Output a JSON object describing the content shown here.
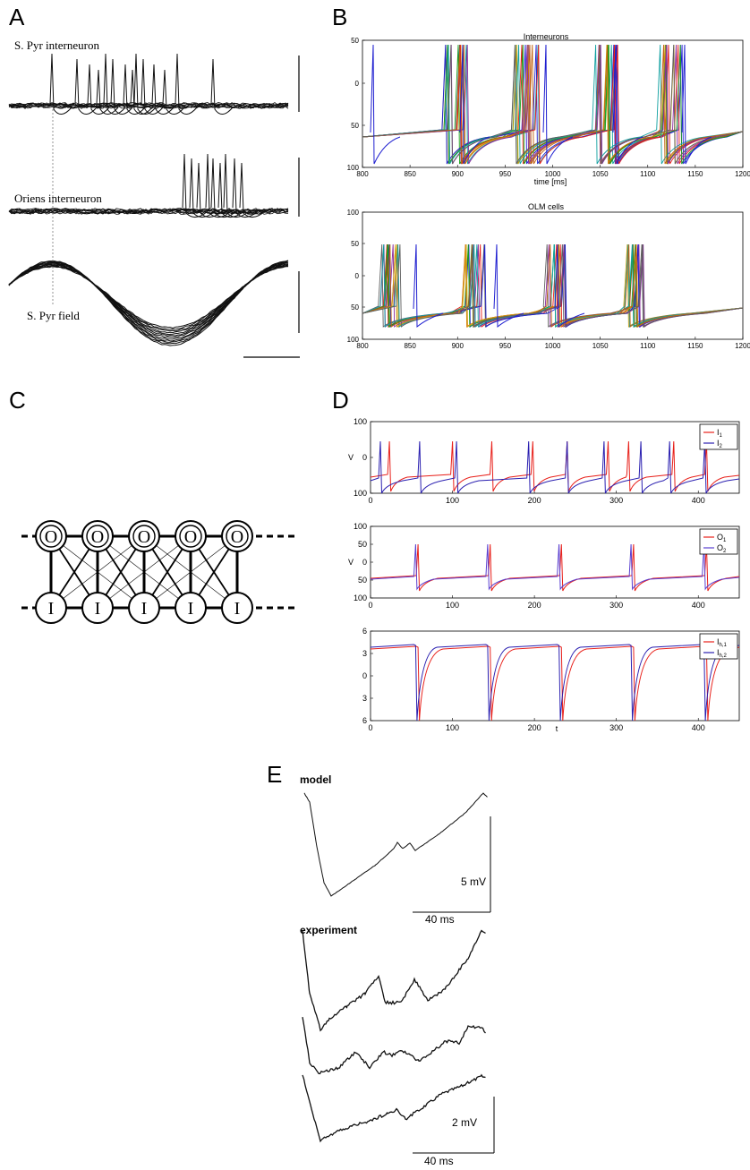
{
  "panels": {
    "A": {
      "letter": "A",
      "labels": [
        "S. Pyr interneuron",
        "Oriens interneuron",
        "S. Pyr field"
      ]
    },
    "B": {
      "letter": "B",
      "top": {
        "title": "Interneurons",
        "xlabel": "time [ms]",
        "xticks": [
          "800",
          "850",
          "900",
          "950",
          "1000",
          "1050",
          "1100",
          "1150",
          "1200"
        ],
        "yticks": [
          "50",
          "0",
          "50",
          "100"
        ]
      },
      "bottom": {
        "title": "OLM cells",
        "xticks": [
          "800",
          "850",
          "900",
          "950",
          "1000",
          "1050",
          "1100",
          "1150",
          "1200"
        ],
        "yticks": [
          "100",
          "50",
          "0",
          "50",
          "100"
        ]
      }
    },
    "C": {
      "letter": "C",
      "top_nodes": [
        "O",
        "O",
        "O",
        "O",
        "O"
      ],
      "bottom_nodes": [
        "I",
        "I",
        "I",
        "I",
        "I"
      ]
    },
    "D": {
      "letter": "D",
      "plot1": {
        "ylabel": "V",
        "yticks": [
          "100",
          "0",
          "100"
        ],
        "xticks": [
          "0",
          "100",
          "200",
          "300",
          "400"
        ],
        "legend": [
          {
            "name": "I",
            "sub": "1",
            "color": "#e8201a"
          },
          {
            "name": "I",
            "sub": "2",
            "color": "#2a1fb0"
          }
        ]
      },
      "plot2": {
        "ylabel": "V",
        "yticks": [
          "100",
          "50",
          "0",
          "50",
          "100"
        ],
        "xticks": [
          "0",
          "100",
          "200",
          "300",
          "400"
        ],
        "legend": [
          {
            "name": "O",
            "sub": "1",
            "color": "#e8201a"
          },
          {
            "name": "O",
            "sub": "2",
            "color": "#5a3fd0"
          }
        ]
      },
      "plot3": {
        "xlabel": "t",
        "yticks": [
          "6",
          "3",
          "0",
          "3",
          "6"
        ],
        "xticks": [
          "0",
          "100",
          "200",
          "300",
          "400"
        ],
        "legend": [
          {
            "name": "I",
            "sub": "h,1",
            "color": "#e8201a"
          },
          {
            "name": "I",
            "sub": "h,2",
            "color": "#2a1fb0"
          }
        ]
      }
    },
    "E": {
      "letter": "E",
      "model_label": "model",
      "model_scale_v": "5 mV",
      "model_scale_t": "40 ms",
      "experiment_label": "experiment",
      "exp_scale_v": "2 mV",
      "exp_scale_t": "40 ms"
    }
  },
  "colors": {
    "red": "#e8201a",
    "blue": "#2a1fb0",
    "purple": "#5a3fd0",
    "trace_palette": [
      "#1f1fd0",
      "#e8201a",
      "#1aa01a",
      "#d0a010",
      "#8a2aa0",
      "#10a0a0",
      "#c06010",
      "#606060"
    ]
  }
}
